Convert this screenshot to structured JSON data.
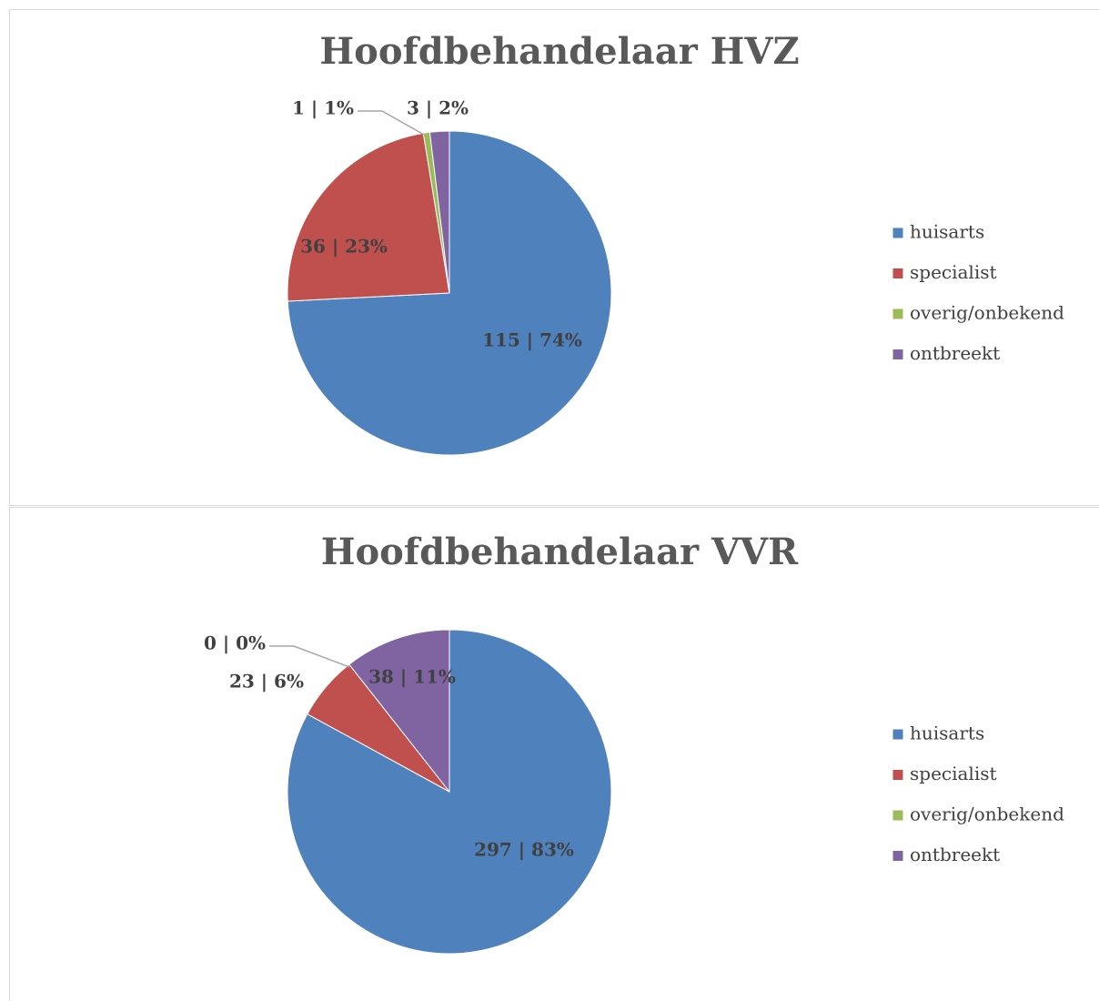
{
  "chart_data": [
    {
      "type": "pie",
      "title": "Hoofdbehandelaar HVZ",
      "categories": [
        "huisarts",
        "specialist",
        "overig/onbekend",
        "ontbreekt"
      ],
      "values": [
        115,
        36,
        1,
        3
      ],
      "value_labels": [
        "115 | 74%",
        "36 | 23%",
        "1 | 1%",
        "3 | 2%"
      ],
      "colors": [
        "#4f81bd",
        "#c0504d",
        "#9bbb59",
        "#8064a2"
      ],
      "legend": "right"
    },
    {
      "type": "pie",
      "title": "Hoofdbehandelaar VVR",
      "categories": [
        "huisarts",
        "specialist",
        "overig/onbekend",
        "ontbreekt"
      ],
      "values": [
        297,
        23,
        0,
        38
      ],
      "value_labels": [
        "297 | 83%",
        "23 | 6%",
        "0 | 0%",
        "38 | 11%"
      ],
      "colors": [
        "#4f81bd",
        "#c0504d",
        "#9bbb59",
        "#8064a2"
      ],
      "legend": "right"
    }
  ]
}
